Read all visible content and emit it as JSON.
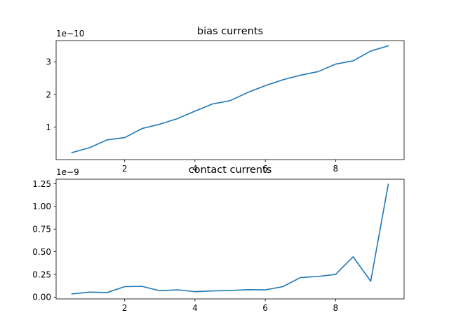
{
  "chart_data": [
    {
      "type": "line",
      "title": "bias currents",
      "offset_label": "1e−10",
      "xlim": [
        0.05,
        9.95
      ],
      "ylim": [
        0.0055,
        3.65
      ],
      "xticks": [
        2,
        4,
        6,
        8
      ],
      "yticks": [
        1,
        2,
        3
      ],
      "color": "#1f77b4",
      "x": [
        0.5,
        1.0,
        1.5,
        2.0,
        2.5,
        3.0,
        3.5,
        4.0,
        4.5,
        5.0,
        5.5,
        6.0,
        6.5,
        7.0,
        7.5,
        8.0,
        8.5,
        9.0,
        9.5
      ],
      "y": [
        0.22,
        0.37,
        0.61,
        0.68,
        0.96,
        1.09,
        1.26,
        1.49,
        1.71,
        1.81,
        2.06,
        2.27,
        2.45,
        2.59,
        2.7,
        2.93,
        3.03,
        3.33,
        3.49
      ]
    },
    {
      "type": "line",
      "title": "contact currents",
      "offset_label": "1e−9",
      "xlim": [
        0.05,
        9.95
      ],
      "ylim": [
        -0.02,
        1.3
      ],
      "xticks": [
        2,
        4,
        6,
        8
      ],
      "yticks": [
        0.0,
        0.25,
        0.5,
        0.75,
        1.0,
        1.25
      ],
      "ytick_labels": [
        "0.00",
        "0.25",
        "0.50",
        "0.75",
        "1.00",
        "1.25"
      ],
      "color": "#1f77b4",
      "x": [
        0.5,
        1.0,
        1.5,
        2.0,
        2.5,
        3.0,
        3.5,
        4.0,
        4.5,
        5.0,
        5.5,
        6.0,
        6.5,
        7.0,
        7.5,
        8.0,
        8.5,
        9.0,
        9.5
      ],
      "y": [
        0.035,
        0.055,
        0.05,
        0.115,
        0.118,
        0.07,
        0.08,
        0.06,
        0.068,
        0.072,
        0.082,
        0.08,
        0.115,
        0.215,
        0.228,
        0.25,
        0.445,
        0.175,
        1.245
      ]
    }
  ]
}
